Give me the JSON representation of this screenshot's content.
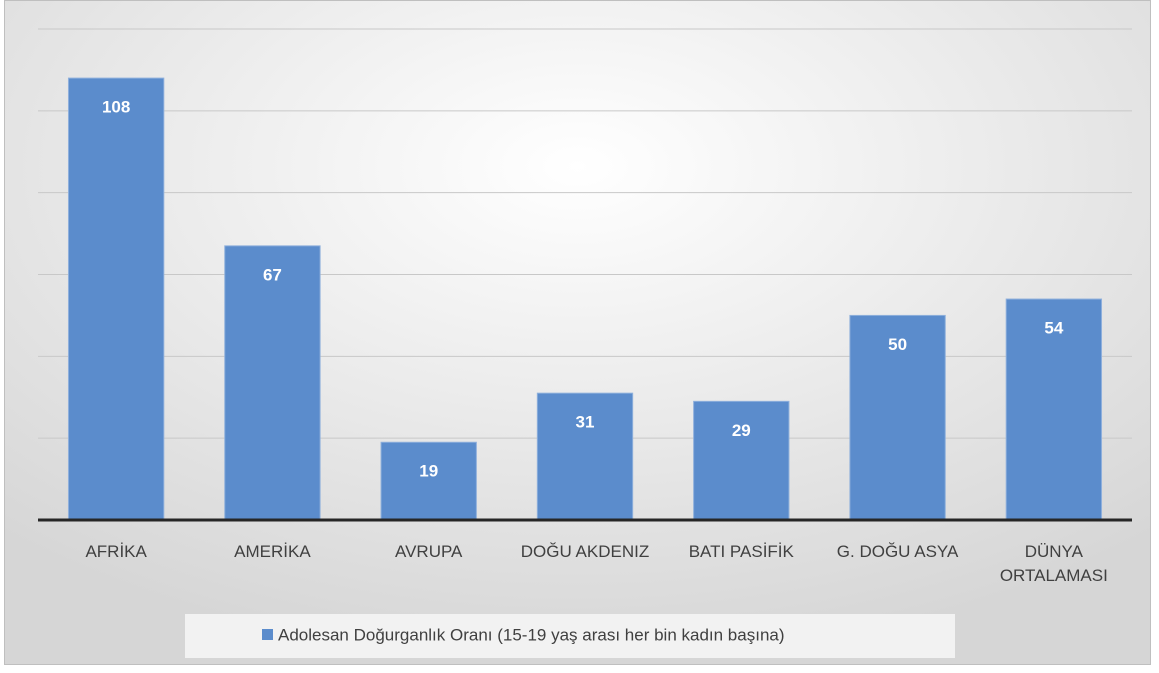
{
  "chart_data": {
    "type": "bar",
    "categories": [
      "AFRİKA",
      "AMERİKA",
      "AVRUPA",
      "DOĞU AKDENIZ",
      "BATI PASİFİK",
      "G. DOĞU ASYA",
      "DÜNYA ORTALAMASI"
    ],
    "series": [
      {
        "name": "Adolesan Doğurganlık Oranı (15-19 yaş arası her bin kadın başına)",
        "color": "#5b8ccc",
        "values": [
          108,
          67,
          19,
          31,
          29,
          50,
          54
        ]
      }
    ],
    "ylim": [
      0,
      120
    ],
    "yticks": [
      0,
      20,
      40,
      60,
      80,
      100,
      120
    ],
    "grid": true,
    "legend": "bottom"
  }
}
